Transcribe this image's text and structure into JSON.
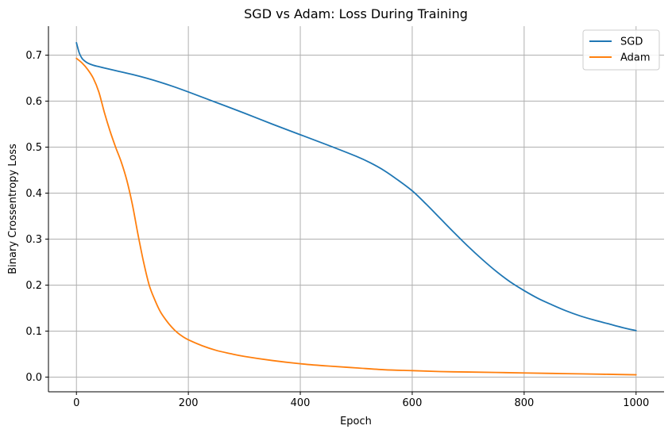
{
  "chart_data": {
    "type": "line",
    "title": "SGD vs Adam: Loss During Training",
    "xlabel": "Epoch",
    "ylabel": "Binary Crossentropy Loss",
    "xlim": [
      -50,
      1050
    ],
    "ylim": [
      -0.032,
      0.763
    ],
    "xticks": [
      0,
      200,
      400,
      600,
      800,
      1000
    ],
    "yticks": [
      0.0,
      0.1,
      0.2,
      0.3,
      0.4,
      0.5,
      0.6,
      0.7
    ],
    "xtick_labels": [
      "0",
      "200",
      "400",
      "600",
      "800",
      "1000"
    ],
    "ytick_labels": [
      "0.0",
      "0.1",
      "0.2",
      "0.3",
      "0.4",
      "0.5",
      "0.6",
      "0.7"
    ],
    "grid": true,
    "legend_position": "top-right",
    "series": [
      {
        "name": "SGD",
        "color": "#1f77b4",
        "x": [
          0,
          5,
          10,
          15,
          20,
          30,
          40,
          50,
          75,
          100,
          125,
          150,
          175,
          200,
          250,
          300,
          350,
          400,
          450,
          500,
          525,
          550,
          575,
          600,
          625,
          650,
          675,
          700,
          725,
          750,
          775,
          800,
          825,
          850,
          875,
          900,
          925,
          950,
          975,
          1000
        ],
        "y": [
          0.727,
          0.705,
          0.693,
          0.687,
          0.683,
          0.678,
          0.675,
          0.672,
          0.665,
          0.658,
          0.65,
          0.641,
          0.631,
          0.62,
          0.597,
          0.574,
          0.55,
          0.527,
          0.504,
          0.48,
          0.466,
          0.449,
          0.428,
          0.405,
          0.376,
          0.345,
          0.314,
          0.284,
          0.256,
          0.23,
          0.207,
          0.188,
          0.171,
          0.157,
          0.144,
          0.133,
          0.124,
          0.116,
          0.108,
          0.101
        ]
      },
      {
        "name": "Adam",
        "color": "#ff7f0e",
        "x": [
          0,
          10,
          20,
          30,
          40,
          50,
          60,
          70,
          80,
          90,
          100,
          110,
          120,
          130,
          140,
          150,
          160,
          170,
          180,
          190,
          200,
          225,
          250,
          275,
          300,
          350,
          400,
          450,
          500,
          550,
          600,
          650,
          700,
          750,
          800,
          850,
          900,
          950,
          1000
        ],
        "y": [
          0.693,
          0.683,
          0.669,
          0.65,
          0.62,
          0.575,
          0.535,
          0.5,
          0.468,
          0.428,
          0.375,
          0.31,
          0.25,
          0.2,
          0.168,
          0.142,
          0.124,
          0.109,
          0.097,
          0.088,
          0.081,
          0.068,
          0.058,
          0.051,
          0.045,
          0.036,
          0.029,
          0.024,
          0.02,
          0.016,
          0.014,
          0.012,
          0.011,
          0.01,
          0.009,
          0.008,
          0.007,
          0.006,
          0.005
        ]
      }
    ]
  }
}
